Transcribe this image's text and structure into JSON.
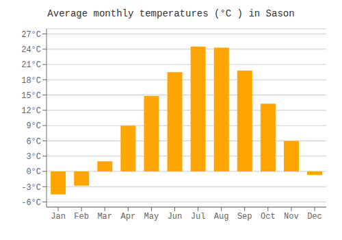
{
  "chart_data": {
    "type": "bar",
    "title": "Average monthly temperatures (°C ) in Sason",
    "categories": [
      "Jan",
      "Feb",
      "Mar",
      "Apr",
      "May",
      "Jun",
      "Jul",
      "Aug",
      "Sep",
      "Oct",
      "Nov",
      "Dec"
    ],
    "values": [
      -4.5,
      -2.8,
      2.0,
      9.0,
      14.8,
      19.5,
      24.5,
      24.3,
      19.8,
      13.3,
      6.0,
      -0.7
    ],
    "color": "#FFA500",
    "ylim": [
      -7,
      28
    ],
    "yticks": [
      {
        "value": -6,
        "label": "-6°C"
      },
      {
        "value": -3,
        "label": "-3°C"
      },
      {
        "value": 0,
        "label": "0°C"
      },
      {
        "value": 3,
        "label": "3°C"
      },
      {
        "value": 6,
        "label": "6°C"
      },
      {
        "value": 9,
        "label": "9°C"
      },
      {
        "value": 12,
        "label": "12°C"
      },
      {
        "value": 15,
        "label": "15°C"
      },
      {
        "value": 18,
        "label": "18°C"
      },
      {
        "value": 21,
        "label": "21°C"
      },
      {
        "value": 24,
        "label": "24°C"
      },
      {
        "value": 27,
        "label": "27°C"
      }
    ],
    "grid": true
  }
}
